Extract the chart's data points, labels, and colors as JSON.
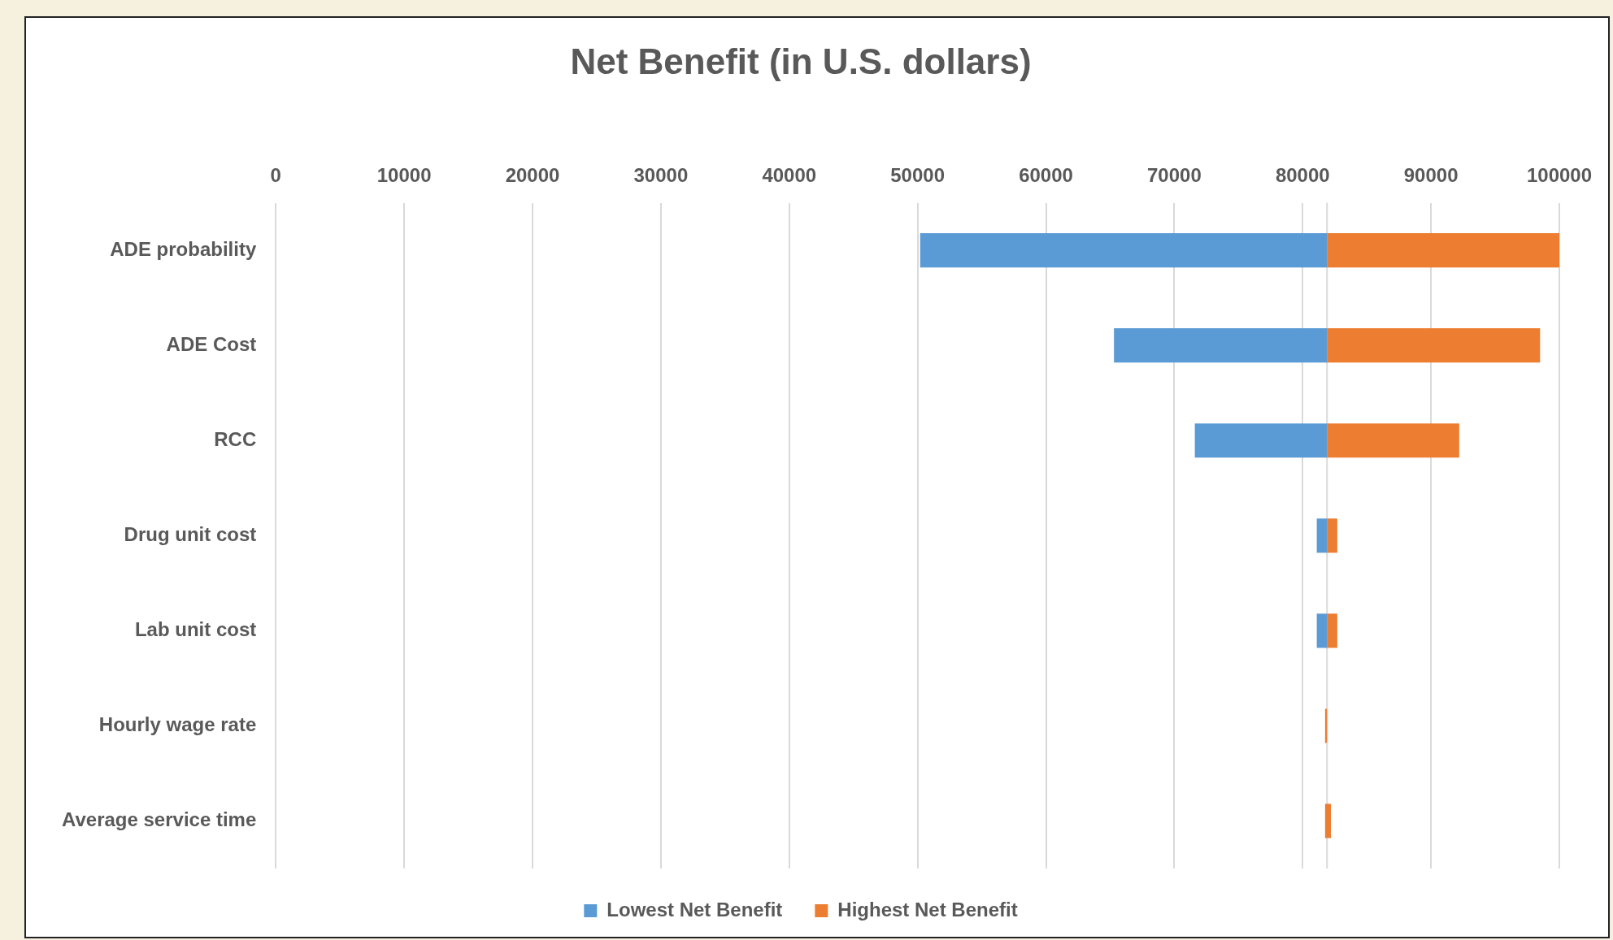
{
  "chart_data": {
    "type": "bar",
    "orientation": "horizontal",
    "title": "Net Benefit (in U.S. dollars)",
    "categories": [
      "ADE probability",
      "ADE Cost",
      "RCC",
      "Drug unit cost",
      "Lab unit cost",
      "Hourly wage rate",
      "Average service time"
    ],
    "series": [
      {
        "name": "Lowest Net Benefit",
        "color": "#5b9bd5",
        "base": [
          50200,
          65300,
          71600,
          81100,
          81100,
          null,
          null
        ],
        "values": [
          31700,
          16600,
          10300,
          800,
          800,
          null,
          null
        ]
      },
      {
        "name": "Highest Net Benefit",
        "color": "#ed7d31",
        "base": [
          81900,
          81900,
          81900,
          81900,
          81900,
          81750,
          81750
        ],
        "values": [
          18100,
          16600,
          10300,
          800,
          800,
          150,
          450
        ]
      }
    ],
    "xlim": [
      0,
      100000
    ],
    "xticks": [
      0,
      10000,
      20000,
      30000,
      40000,
      50000,
      60000,
      70000,
      80000,
      90000,
      100000
    ],
    "ref_lines": [
      {
        "axis": "x",
        "value": 81900,
        "label": null,
        "color": "#d9d9d9"
      }
    ],
    "grid": "x",
    "legend": "bottom"
  }
}
